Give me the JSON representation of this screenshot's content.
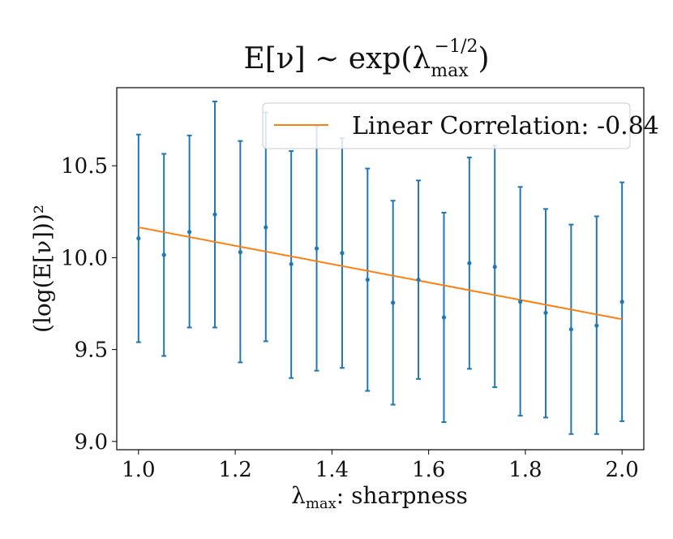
{
  "chart_data": {
    "type": "scatter",
    "title_main": "E[ν] ∼ exp(λ",
    "title_sub": "max",
    "title_sup": "−1/2",
    "title_close": ")",
    "xlabel_lambda": "λ",
    "xlabel_sub": "max",
    "xlabel_rest": ": sharpness",
    "ylabel": "(log(E[ν]))²",
    "xlim": [
      0.955,
      2.045
    ],
    "ylim": [
      8.955,
      10.925
    ],
    "xticks": [
      1.0,
      1.2,
      1.4,
      1.6,
      1.8,
      2.0
    ],
    "xtick_labels": [
      "1.0",
      "1.2",
      "1.4",
      "1.6",
      "1.8",
      "2.0"
    ],
    "yticks": [
      9.0,
      9.5,
      10.0,
      10.5
    ],
    "ytick_labels": [
      "9.0",
      "9.5",
      "10.0",
      "10.5"
    ],
    "series": [
      {
        "name": "data",
        "color": "#1f77b4",
        "x": [
          1.0,
          1.0526,
          1.1053,
          1.1579,
          1.2105,
          1.2632,
          1.3158,
          1.3684,
          1.4211,
          1.4737,
          1.5263,
          1.5789,
          1.6316,
          1.6842,
          1.7368,
          1.7895,
          1.8421,
          1.8947,
          1.9474,
          2.0
        ],
        "y": [
          10.105,
          10.015,
          10.14,
          10.235,
          10.03,
          10.165,
          9.965,
          10.05,
          10.025,
          9.88,
          9.755,
          9.88,
          9.675,
          9.97,
          9.95,
          9.76,
          9.7,
          9.61,
          9.63,
          9.76
        ],
        "yerr_low": [
          9.54,
          9.465,
          9.62,
          9.62,
          9.43,
          9.545,
          9.345,
          9.385,
          9.4,
          9.275,
          9.2,
          9.34,
          9.105,
          9.395,
          9.295,
          9.14,
          9.13,
          9.04,
          9.04,
          9.11
        ],
        "yerr_high": [
          10.67,
          10.565,
          10.665,
          10.85,
          10.635,
          10.79,
          10.58,
          10.715,
          10.65,
          10.485,
          10.31,
          10.42,
          10.245,
          10.545,
          10.61,
          10.385,
          10.265,
          10.18,
          10.225,
          10.41
        ]
      },
      {
        "name": "Linear Correlation: -0.84",
        "type": "line",
        "color": "#ff7f0e",
        "x": [
          1.0,
          2.0
        ],
        "y": [
          10.165,
          9.665
        ]
      }
    ],
    "legend": {
      "label": "Linear Correlation: -0.84",
      "location": "top-right"
    }
  }
}
